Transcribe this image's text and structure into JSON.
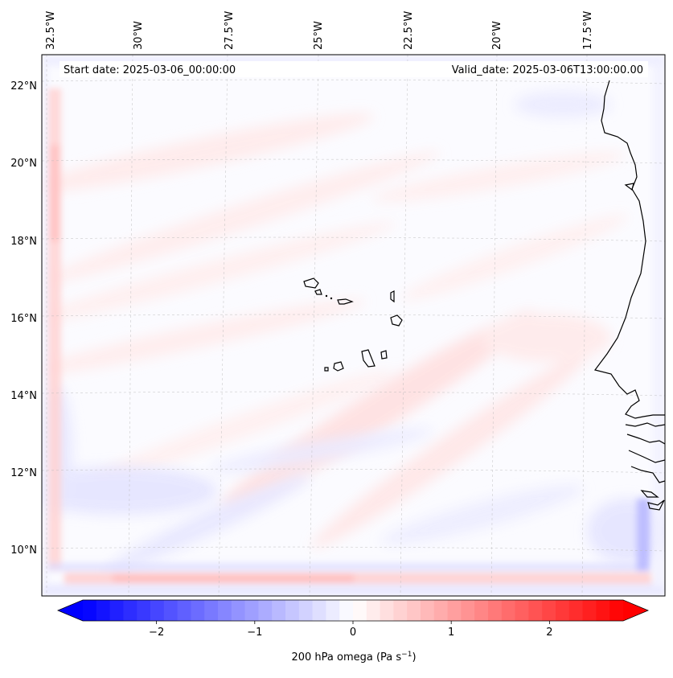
{
  "map": {
    "start_date": "Start date: 2025-03-06_00:00:00",
    "valid_date": "Valid_date: 2025-03-06T13:00:00.00",
    "lon_labels": [
      "32.5°W",
      "30°W",
      "27.5°W",
      "25°W",
      "22.5°W",
      "20°W",
      "17.5°W"
    ],
    "lat_labels": [
      "22°N",
      "20°N",
      "18°N",
      "16°N",
      "14°N",
      "12°N",
      "10°N"
    ],
    "field_colors": {
      "neg_strong": "#8c8cff",
      "neg_weak": "#e8e8ff",
      "neutral": "#fbfbff",
      "pos_weak": "#ffeaea",
      "pos_strong": "#ffb4b4"
    }
  },
  "colorbar": {
    "label": "200 hPa omega (Pa s",
    "label_exp": "−1",
    "label_end": ")",
    "vmin": -2.75,
    "vmax": 2.75,
    "ticks": [
      {
        "value": -2,
        "label": "−2"
      },
      {
        "value": -1,
        "label": "−1"
      },
      {
        "value": 0,
        "label": "0"
      },
      {
        "value": 1,
        "label": "1"
      },
      {
        "value": 2,
        "label": "2"
      }
    ],
    "color_min": "#0000ff",
    "color_mid": "#ffffff",
    "color_max": "#ff0000"
  }
}
